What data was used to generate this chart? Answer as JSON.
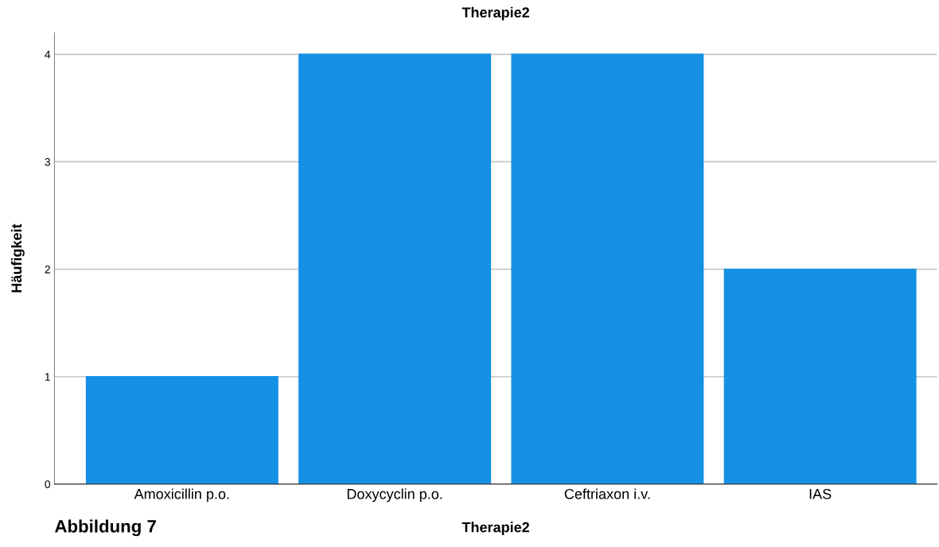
{
  "chart_data": {
    "type": "bar",
    "title": "Therapie2",
    "xlabel": "Therapie2",
    "ylabel": "Häufigkeit",
    "categories": [
      "Amoxicillin p.o.",
      "Doxycyclin p.o.",
      "Ceftriaxon i.v.",
      "IAS"
    ],
    "values": [
      1,
      4,
      4,
      2
    ],
    "color": "#1490e4",
    "ylim": [
      0,
      4.2
    ],
    "yticks": [
      0,
      1,
      2,
      3,
      4
    ],
    "grid": "y",
    "annotations": [
      "Abbildung 7"
    ]
  }
}
